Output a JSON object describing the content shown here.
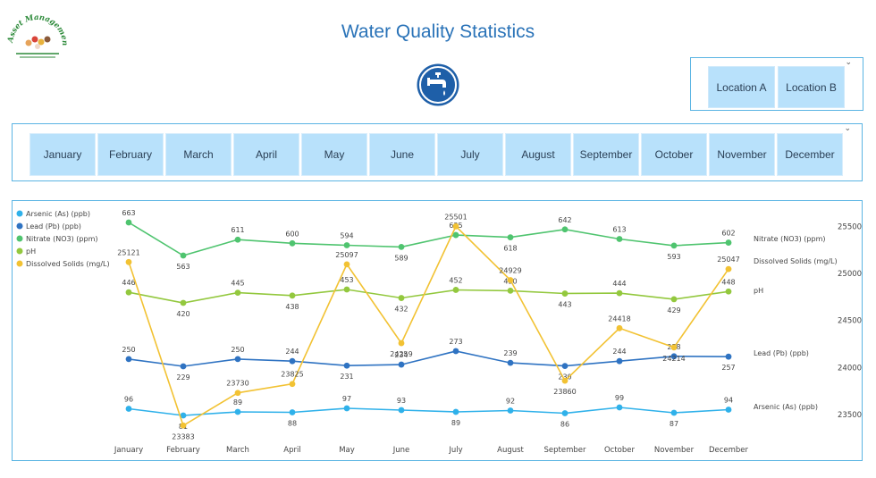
{
  "header": {
    "title": "Water Quality Statistics",
    "logo_text": "Asset Management"
  },
  "location_filter": {
    "options": [
      "Location A",
      "Location B"
    ]
  },
  "month_filter": {
    "options": [
      "January",
      "February",
      "March",
      "April",
      "May",
      "June",
      "July",
      "August",
      "September",
      "October",
      "November",
      "December"
    ]
  },
  "colors": {
    "arsenic": "#2fb1ea",
    "lead": "#2f73c2",
    "nitrate": "#4fc46f",
    "ph": "#93c83e",
    "dissolved": "#f2c233",
    "accent": "#2a73b8",
    "tile": "#b8e1fb"
  },
  "chart_data": {
    "type": "line",
    "categories": [
      "January",
      "February",
      "March",
      "April",
      "May",
      "June",
      "July",
      "August",
      "September",
      "October",
      "November",
      "December"
    ],
    "y2_axis": {
      "ticks": [
        23500,
        24000,
        24500,
        25000,
        25500
      ],
      "tick_labels": [
        "23500",
        "24000",
        "24500",
        "25000",
        "25500"
      ],
      "range": [
        23300,
        25580
      ]
    },
    "series": [
      {
        "key": "arsenic",
        "name": "Arsenic (As) (ppb)",
        "end_label": "Arsenic (As) (ppb)",
        "axis": "left",
        "values": [
          96,
          81,
          89,
          88,
          97,
          93,
          89,
          92,
          86,
          99,
          87,
          94
        ],
        "labels": [
          "96",
          "81",
          "89",
          "88",
          "97",
          "93",
          "89",
          "92",
          "86",
          "99",
          "87",
          "94"
        ]
      },
      {
        "key": "lead",
        "name": "Lead (Pb) (ppb)",
        "end_label": "Lead (Pb) (ppb)",
        "axis": "left",
        "values": [
          250,
          229,
          250,
          244,
          231,
          234,
          273,
          239,
          230,
          244,
          258,
          257
        ],
        "labels": [
          "250",
          "229",
          "250",
          "244",
          "231",
          "234",
          "273",
          "239",
          "230",
          "244",
          "258",
          "257"
        ]
      },
      {
        "key": "nitrate",
        "name": "Nitrate (NO3) (ppm)",
        "end_label": "Nitrate (NO3) (ppm)",
        "axis": "left",
        "values": [
          663,
          563,
          611,
          600,
          594,
          589,
          625,
          618,
          642,
          613,
          593,
          602
        ],
        "labels": [
          "663",
          "563",
          "611",
          "600",
          "594",
          "589",
          "625",
          "618",
          "642",
          "613",
          "593",
          "602"
        ]
      },
      {
        "key": "ph",
        "name": "pH",
        "end_label": "pH",
        "axis": "left",
        "values": [
          446,
          420,
          445,
          438,
          453,
          432,
          452,
          450,
          443,
          444,
          429,
          448
        ],
        "labels": [
          "446",
          "420",
          "445",
          "438",
          "453",
          "432",
          "452",
          "450",
          "443",
          "444",
          "429",
          "448"
        ]
      },
      {
        "key": "dissolved",
        "name": "Dissolved Solids (mg/L)",
        "end_label": "Dissolved Solids (mg/L)",
        "axis": "right",
        "values": [
          25121,
          23383,
          23730,
          23825,
          25097,
          24259,
          25501,
          24929,
          23860,
          24418,
          24214,
          25047
        ],
        "labels": [
          "25121",
          "23383",
          "23730",
          "23825",
          "25097",
          "24259",
          "25501",
          "24929",
          "23860",
          "24418",
          "24214",
          "25047"
        ]
      }
    ]
  }
}
